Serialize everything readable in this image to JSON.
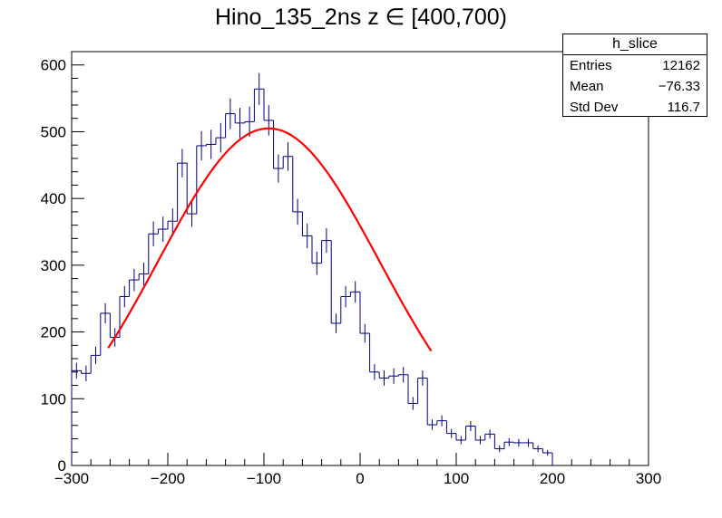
{
  "chart_data": {
    "type": "histogram",
    "title": "Hino_135_2ns z  ∈ [400,700)",
    "xlabel": "",
    "ylabel": "",
    "xlim": [
      -300,
      300
    ],
    "ylim": [
      0,
      620
    ],
    "x_ticks": [
      "−300",
      "−200",
      "−100",
      "0",
      "100",
      "200",
      "300"
    ],
    "x_tick_values": [
      -300,
      -200,
      -100,
      0,
      100,
      200,
      300
    ],
    "y_ticks": [
      "0",
      "100",
      "200",
      "300",
      "400",
      "500",
      "600"
    ],
    "y_tick_values": [
      0,
      100,
      200,
      300,
      400,
      500,
      600
    ],
    "bin_low": -300,
    "bin_width": 10,
    "series": [
      {
        "name": "h_slice",
        "color": "#000080",
        "values": [
          142,
          138,
          165,
          228,
          192,
          253,
          278,
          287,
          347,
          354,
          366,
          453,
          377,
          479,
          481,
          491,
          527,
          513,
          515,
          564,
          517,
          445,
          463,
          380,
          344,
          303,
          337,
          213,
          253,
          260,
          198,
          140,
          131,
          134,
          136,
          93,
          131,
          61,
          67,
          48,
          38,
          59,
          38,
          47,
          25,
          35,
          34,
          34,
          25,
          19
        ]
      }
    ],
    "fit": {
      "name": "gaussian fit",
      "color": "#ff0000",
      "amplitude": 505,
      "mean": -95,
      "sigma": 115,
      "range": [
        -262,
        75
      ]
    },
    "stats": {
      "name": "h_slice",
      "entries_label": "Entries",
      "entries": "12162",
      "mean_label": "Mean",
      "mean": "−76.33",
      "stddev_label": "Std Dev",
      "stddev": "116.7"
    }
  }
}
